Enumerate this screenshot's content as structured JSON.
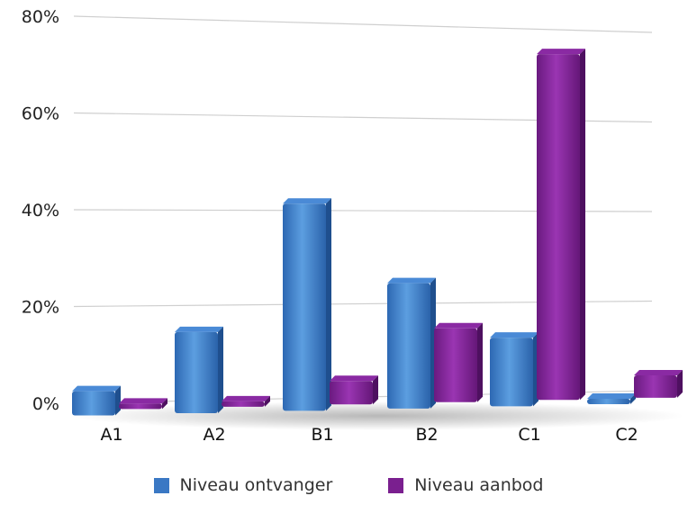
{
  "chart_data": {
    "type": "bar",
    "categories": [
      "A1",
      "A2",
      "B1",
      "B2",
      "C1",
      "C2"
    ],
    "series": [
      {
        "name": "Niveau ontvanger",
        "values": [
          5,
          17,
          44,
          27,
          15,
          0
        ],
        "color": "#3a78c4"
      },
      {
        "name": "Niveau aanbod",
        "values": [
          0,
          0,
          5,
          16,
          76,
          5
        ],
        "color": "#7a1f8f"
      }
    ],
    "y_ticks": [
      "0%",
      "20%",
      "40%",
      "60%",
      "80%"
    ],
    "ylim": [
      0,
      80
    ],
    "grid": true,
    "legend_position": "bottom"
  }
}
